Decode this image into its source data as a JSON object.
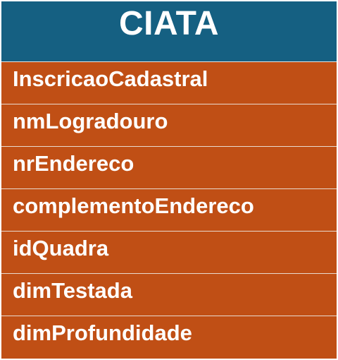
{
  "entity": {
    "title": "CIATA",
    "header_color": "#156082",
    "body_color": "#c04f15",
    "fields": [
      "InscricaoCadastral",
      "nmLogradouro",
      "nrEndereco",
      "complementoEndereco",
      "idQuadra",
      "dimTestada",
      "dimProfundidade"
    ]
  }
}
